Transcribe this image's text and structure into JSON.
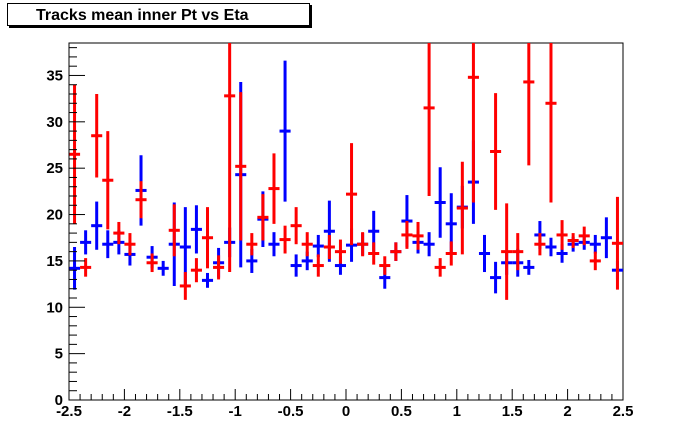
{
  "chart_data": {
    "type": "errorbar",
    "title": "Tracks mean inner Pt vs Eta",
    "xlabel": "",
    "ylabel": "",
    "xlim": [
      -2.5,
      2.5
    ],
    "ylim": [
      0,
      38.5
    ],
    "x_ticks": [
      "-2.5",
      "-2",
      "-1.5",
      "-1",
      "-0.5",
      "0",
      "0.5",
      "1",
      "1.5",
      "2",
      "2.5"
    ],
    "y_ticks": [
      "0",
      "5",
      "10",
      "15",
      "20",
      "25",
      "30",
      "35"
    ],
    "grid": false,
    "legend": "none",
    "series": [
      {
        "color": "#0000ff",
        "x_half_width": 0.05,
        "points": [
          {
            "x": -2.45,
            "y": 14.2,
            "err": 2.3
          },
          {
            "x": -2.35,
            "y": 17.0,
            "err": 1.3
          },
          {
            "x": -2.25,
            "y": 18.8,
            "err": 2.6
          },
          {
            "x": -2.15,
            "y": 16.8,
            "err": 1.5
          },
          {
            "x": -2.05,
            "y": 17.0,
            "err": 1.3
          },
          {
            "x": -1.95,
            "y": 15.7,
            "err": 1.2
          },
          {
            "x": -1.85,
            "y": 22.6,
            "err": 3.8
          },
          {
            "x": -1.75,
            "y": 15.4,
            "err": 1.2
          },
          {
            "x": -1.65,
            "y": 14.2,
            "err": 0.8
          },
          {
            "x": -1.55,
            "y": 16.8,
            "err": 4.5
          },
          {
            "x": -1.45,
            "y": 16.5,
            "err": 4.3
          },
          {
            "x": -1.35,
            "y": 18.4,
            "err": 2.6
          },
          {
            "x": -1.25,
            "y": 12.9,
            "err": 0.8
          },
          {
            "x": -1.15,
            "y": 14.8,
            "err": 1.6
          },
          {
            "x": -1.05,
            "y": 17.0,
            "err": 1.6
          },
          {
            "x": -0.95,
            "y": 24.3,
            "err": 10.0
          },
          {
            "x": -0.85,
            "y": 15.0,
            "err": 1.3
          },
          {
            "x": -0.75,
            "y": 19.5,
            "err": 3.0
          },
          {
            "x": -0.65,
            "y": 16.8,
            "err": 1.3
          },
          {
            "x": -0.55,
            "y": 29.0,
            "err": 7.6
          },
          {
            "x": -0.45,
            "y": 14.5,
            "err": 1.2
          },
          {
            "x": -0.35,
            "y": 15.0,
            "err": 1.0
          },
          {
            "x": -0.25,
            "y": 16.6,
            "err": 1.2
          },
          {
            "x": -0.15,
            "y": 18.2,
            "err": 3.3
          },
          {
            "x": -0.05,
            "y": 14.5,
            "err": 1.0
          },
          {
            "x": 0.05,
            "y": 16.7,
            "err": 1.8
          },
          {
            "x": 0.15,
            "y": 16.8,
            "err": 1.2
          },
          {
            "x": 0.25,
            "y": 18.2,
            "err": 2.2
          },
          {
            "x": 0.35,
            "y": 13.2,
            "err": 1.2
          },
          {
            "x": 0.45,
            "y": 16.0,
            "err": 1.0
          },
          {
            "x": 0.55,
            "y": 19.3,
            "err": 2.8
          },
          {
            "x": 0.65,
            "y": 17.0,
            "err": 1.2
          },
          {
            "x": 0.75,
            "y": 16.8,
            "err": 1.3
          },
          {
            "x": 0.85,
            "y": 21.3,
            "err": 3.8
          },
          {
            "x": 0.95,
            "y": 19.0,
            "err": 3.3
          },
          {
            "x": 1.05,
            "y": 20.8,
            "err": 2.3
          },
          {
            "x": 1.15,
            "y": 23.5,
            "err": 4.5
          },
          {
            "x": 1.25,
            "y": 15.8,
            "err": 2.0
          },
          {
            "x": 1.35,
            "y": 13.2,
            "err": 1.7
          },
          {
            "x": 1.45,
            "y": 14.8,
            "err": 1.3
          },
          {
            "x": 1.55,
            "y": 14.8,
            "err": 1.5
          },
          {
            "x": 1.65,
            "y": 14.3,
            "err": 0.8
          },
          {
            "x": 1.75,
            "y": 17.8,
            "err": 1.5
          },
          {
            "x": 1.85,
            "y": 16.5,
            "err": 1.0
          },
          {
            "x": 1.95,
            "y": 15.8,
            "err": 1.0
          },
          {
            "x": 2.05,
            "y": 16.8,
            "err": 0.8
          },
          {
            "x": 2.15,
            "y": 17.0,
            "err": 0.8
          },
          {
            "x": 2.25,
            "y": 16.8,
            "err": 1.0
          },
          {
            "x": 2.35,
            "y": 17.5,
            "err": 2.2
          },
          {
            "x": 2.45,
            "y": 14.0,
            "err": 1.0
          }
        ]
      },
      {
        "color": "#ff0000",
        "x_half_width": 0.05,
        "points": [
          {
            "x": -2.45,
            "y": 26.5,
            "err": 7.5
          },
          {
            "x": -2.35,
            "y": 14.3,
            "err": 1.0
          },
          {
            "x": -2.25,
            "y": 28.5,
            "err": 4.5
          },
          {
            "x": -2.15,
            "y": 23.7,
            "err": 5.3
          },
          {
            "x": -2.05,
            "y": 18.0,
            "err": 1.2
          },
          {
            "x": -1.95,
            "y": 16.8,
            "err": 1.2
          },
          {
            "x": -1.85,
            "y": 21.6,
            "err": 2.0
          },
          {
            "x": -1.75,
            "y": 14.8,
            "err": 1.0
          },
          {
            "x": -1.55,
            "y": 18.3,
            "err": 2.8
          },
          {
            "x": -1.45,
            "y": 12.3,
            "err": 1.5
          },
          {
            "x": -1.35,
            "y": 14.0,
            "err": 1.3
          },
          {
            "x": -1.25,
            "y": 17.5,
            "err": 3.3
          },
          {
            "x": -1.15,
            "y": 14.3,
            "err": 1.3
          },
          {
            "x": -1.05,
            "y": 32.8,
            "err": 19.0
          },
          {
            "x": -0.95,
            "y": 25.2,
            "err": 8.0
          },
          {
            "x": -0.85,
            "y": 16.8,
            "err": 1.2
          },
          {
            "x": -0.75,
            "y": 19.7,
            "err": 2.5
          },
          {
            "x": -0.65,
            "y": 22.8,
            "err": 3.8
          },
          {
            "x": -0.55,
            "y": 17.3,
            "err": 1.5
          },
          {
            "x": -0.45,
            "y": 18.8,
            "err": 2.0
          },
          {
            "x": -0.35,
            "y": 16.8,
            "err": 1.3
          },
          {
            "x": -0.25,
            "y": 14.5,
            "err": 1.2
          },
          {
            "x": -0.15,
            "y": 16.5,
            "err": 1.3
          },
          {
            "x": -0.05,
            "y": 16.0,
            "err": 1.3
          },
          {
            "x": 0.05,
            "y": 22.2,
            "err": 5.5
          },
          {
            "x": 0.15,
            "y": 16.8,
            "err": 1.3
          },
          {
            "x": 0.25,
            "y": 15.8,
            "err": 1.2
          },
          {
            "x": 0.35,
            "y": 14.5,
            "err": 1.0
          },
          {
            "x": 0.45,
            "y": 16.0,
            "err": 1.0
          },
          {
            "x": 0.55,
            "y": 17.8,
            "err": 1.5
          },
          {
            "x": 0.65,
            "y": 17.7,
            "err": 1.5
          },
          {
            "x": 0.75,
            "y": 31.5,
            "err": 9.5
          },
          {
            "x": 0.85,
            "y": 14.3,
            "err": 1.0
          },
          {
            "x": 0.95,
            "y": 15.8,
            "err": 1.3
          },
          {
            "x": 1.05,
            "y": 20.7,
            "err": 5.0
          },
          {
            "x": 1.15,
            "y": 34.8,
            "err": 13.5
          },
          {
            "x": 1.35,
            "y": 26.8,
            "err": 6.3
          },
          {
            "x": 1.45,
            "y": 16.0,
            "err": 5.2
          },
          {
            "x": 1.55,
            "y": 16.0,
            "err": 2.0
          },
          {
            "x": 1.65,
            "y": 34.3,
            "err": 9.0
          },
          {
            "x": 1.75,
            "y": 16.8,
            "err": 1.2
          },
          {
            "x": 1.85,
            "y": 32.0,
            "err": 10.7
          },
          {
            "x": 1.95,
            "y": 17.8,
            "err": 1.6
          },
          {
            "x": 2.05,
            "y": 17.2,
            "err": 0.8
          },
          {
            "x": 2.15,
            "y": 17.7,
            "err": 1.0
          },
          {
            "x": 2.25,
            "y": 15.0,
            "err": 1.0
          },
          {
            "x": 2.45,
            "y": 16.9,
            "err": 5.0
          }
        ]
      }
    ]
  }
}
